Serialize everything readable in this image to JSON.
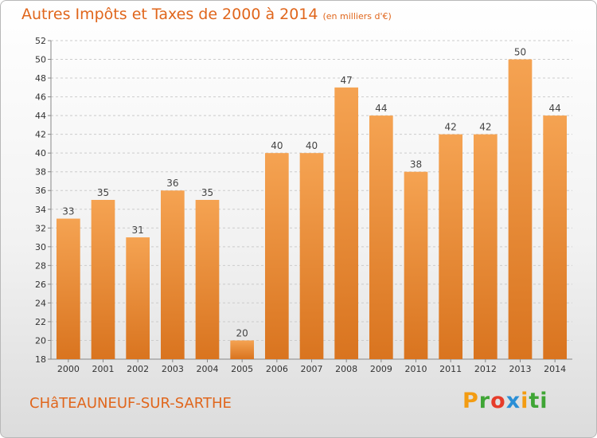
{
  "header": {
    "title": "Autres Impôts et Taxes de 2000 à 2014",
    "unit": "(en milliers d'€)"
  },
  "footer": {
    "commune": "CHâTEAUNEUF-SUR-SARTHE",
    "brand": [
      "P",
      "r",
      "o",
      "x",
      "i",
      "ti"
    ]
  },
  "colors": {
    "accent": "#e0661c",
    "bar_top": "#f5a352",
    "bar_bottom": "#d9741f",
    "grid": "#cccccc"
  },
  "chart_data": {
    "type": "bar",
    "categories": [
      "2000",
      "2001",
      "2002",
      "2003",
      "2004",
      "2005",
      "2006",
      "2007",
      "2008",
      "2009",
      "2010",
      "2011",
      "2012",
      "2013",
      "2014"
    ],
    "values": [
      33,
      35,
      31,
      36,
      35,
      20,
      40,
      40,
      47,
      44,
      38,
      42,
      42,
      50,
      44
    ],
    "title": "Autres Impôts et Taxes de 2000 à 2014",
    "xlabel": "",
    "ylabel": "",
    "ylim": [
      18,
      52
    ],
    "yticks": [
      18,
      20,
      22,
      24,
      26,
      28,
      30,
      32,
      34,
      36,
      38,
      40,
      42,
      44,
      46,
      48,
      50,
      52
    ],
    "grid": true,
    "legend": "none"
  }
}
